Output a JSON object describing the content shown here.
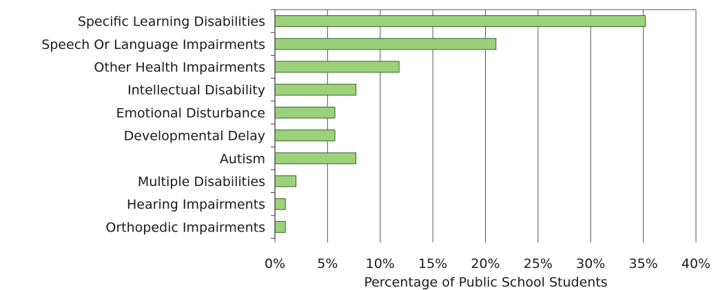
{
  "chart_data": {
    "type": "bar",
    "orientation": "horizontal",
    "categories": [
      "Specific Learning Disabilities",
      "Speech Or Language Impairments",
      "Other Health Impairments",
      "Intellectual Disability",
      "Emotional Disturbance",
      "Developmental Delay",
      "Autism",
      "Multiple Disabilities",
      "Hearing Impairments",
      "Orthopedic Impairments"
    ],
    "values": [
      35.2,
      21.0,
      11.8,
      7.7,
      5.7,
      5.7,
      7.7,
      2.0,
      1.0,
      1.0
    ],
    "xlabel": "Percentage of Public School Students",
    "ylabel": "",
    "xlim": [
      0,
      40
    ],
    "x_ticks": [
      0,
      5,
      10,
      15,
      20,
      25,
      30,
      35,
      40
    ],
    "x_tick_labels": [
      "0%",
      "5%",
      "10%",
      "15%",
      "20%",
      "25%",
      "30%",
      "35%",
      "40%"
    ],
    "grid": "vertical",
    "legend": "none",
    "bar_color": "#99d27b",
    "bar_edge_color": "#3f5f2f"
  }
}
